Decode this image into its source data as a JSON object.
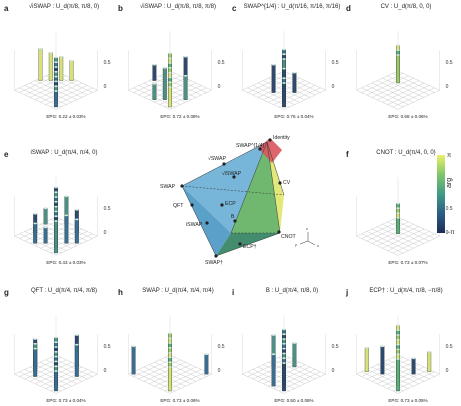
{
  "panels": [
    {
      "label": "a",
      "title": "√iSWAP : U_d(π/8, π/8, 0)",
      "epg": "EPG: 0.22 ± 0.03%"
    },
    {
      "label": "b",
      "title": "√iSWAP : U_d(π/8, π/8, π/8)",
      "epg": "EPG: 0.72 ± 0.08%"
    },
    {
      "label": "c",
      "title": "SWAP^{1/4} : U_d(π/16, π/16, π/16)",
      "epg": "EPG: 0.76 ± 0.04%"
    },
    {
      "label": "d",
      "title": "CV : U_d(π/8, 0, 0)",
      "epg": "EPG: 0.68 ± 0.06%"
    },
    {
      "label": "e",
      "title": "iSWAP : U_d(π/4, π/4, 0)",
      "epg": "EPG: 0.43 ± 0.03%"
    },
    {
      "label": "f",
      "title": "CNOT : U_d(π/4, 0, 0)",
      "epg": "EPG: 0.73 ± 0.07%"
    },
    {
      "label": "g",
      "title": "QFT : U_d(π/4, π/4, π/8)",
      "epg": "EPG: 0.73 ± 0.04%"
    },
    {
      "label": "h",
      "title": "SWAP : U_d(π/4, π/4, π/4)",
      "epg": "EPG: 0.73 ± 0.06%"
    },
    {
      "label": "i",
      "title": "B : U_d(π/4, π/8, 0)",
      "epg": "EPG: 0.50 ± 0.06%"
    },
    {
      "label": "j",
      "title": "ECP† : U_d(π/4, π/8, −π/8)",
      "epg": "EPG: 0.73 ± 0.05%"
    }
  ],
  "axis": {
    "tick_top": "0.5",
    "tick_bottom": "0"
  },
  "colorbar": {
    "top": "π",
    "bottom": "−π",
    "label": "arg"
  },
  "weyl": {
    "labels": [
      "SWAP^{1/4}",
      "Identity",
      "√SWAP",
      "√iSWAP",
      "CV",
      "SWAP",
      "ECP",
      "QFT",
      "B",
      "iSWAP",
      "CNOT",
      "ECP†",
      "SWAP†"
    ],
    "axes": [
      "x",
      "y",
      "z"
    ]
  },
  "colors": {
    "bar_front": "#4e8f84",
    "bar_top": "#a9d6c9",
    "grid": "#d0d0d0",
    "cube": "#bcbcbc"
  }
}
